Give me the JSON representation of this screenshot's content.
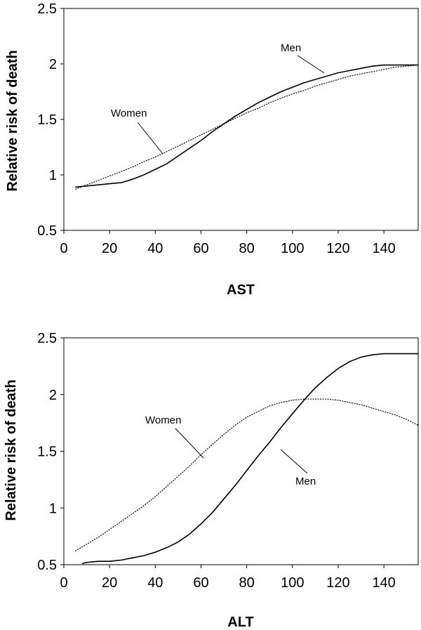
{
  "chart_data": [
    {
      "type": "line",
      "title": "",
      "xlabel": "AST",
      "ylabel": "Relative risk of death",
      "xlim": [
        0,
        155
      ],
      "ylim": [
        0.5,
        2.5
      ],
      "xticks": [
        0,
        20,
        40,
        60,
        80,
        100,
        120,
        140
      ],
      "yticks": [
        0.5,
        1,
        1.5,
        2,
        2.5
      ],
      "x_tick_labels": [
        "0",
        "20",
        "40",
        "60",
        "80",
        "100",
        "120",
        "140"
      ],
      "y_tick_labels": [
        "0.5",
        "1",
        "1.5",
        "2",
        "2.5"
      ],
      "grid": false,
      "series": [
        {
          "name": "Men",
          "style": "solid",
          "x": [
            5,
            10,
            15,
            20,
            25,
            30,
            35,
            40,
            45,
            50,
            55,
            60,
            65,
            70,
            75,
            80,
            85,
            90,
            95,
            100,
            105,
            110,
            115,
            120,
            125,
            130,
            135,
            140,
            145,
            150,
            155
          ],
          "y": [
            0.89,
            0.9,
            0.91,
            0.92,
            0.93,
            0.96,
            1.0,
            1.05,
            1.1,
            1.17,
            1.24,
            1.31,
            1.39,
            1.46,
            1.53,
            1.59,
            1.65,
            1.7,
            1.75,
            1.79,
            1.83,
            1.86,
            1.89,
            1.92,
            1.94,
            1.96,
            1.98,
            1.99,
            1.99,
            1.99,
            1.99
          ]
        },
        {
          "name": "Women",
          "style": "dotted",
          "x": [
            5,
            10,
            15,
            20,
            25,
            30,
            35,
            40,
            45,
            50,
            55,
            60,
            65,
            70,
            75,
            80,
            85,
            90,
            95,
            100,
            105,
            110,
            115,
            120,
            125,
            130,
            135,
            140,
            145,
            150,
            155
          ],
          "y": [
            0.87,
            0.91,
            0.95,
            0.99,
            1.03,
            1.07,
            1.12,
            1.16,
            1.21,
            1.26,
            1.31,
            1.36,
            1.41,
            1.46,
            1.51,
            1.56,
            1.6,
            1.65,
            1.69,
            1.73,
            1.76,
            1.8,
            1.83,
            1.86,
            1.89,
            1.91,
            1.93,
            1.95,
            1.97,
            1.98,
            1.99
          ]
        }
      ],
      "annotations": [
        "Men",
        "Women"
      ]
    },
    {
      "type": "line",
      "title": "",
      "xlabel": "ALT",
      "ylabel": "Relative risk of death",
      "xlim": [
        0,
        155
      ],
      "ylim": [
        0.5,
        2.5
      ],
      "xticks": [
        0,
        20,
        40,
        60,
        80,
        100,
        120,
        140
      ],
      "yticks": [
        0.5,
        1,
        1.5,
        2,
        2.5
      ],
      "x_tick_labels": [
        "0",
        "20",
        "40",
        "60",
        "80",
        "100",
        "120",
        "140"
      ],
      "y_tick_labels": [
        "0.5",
        "1",
        "1.5",
        "2",
        "2.5"
      ],
      "grid": false,
      "series": [
        {
          "name": "Women",
          "style": "dotted",
          "x": [
            5,
            10,
            15,
            20,
            25,
            30,
            35,
            40,
            45,
            50,
            55,
            60,
            65,
            70,
            75,
            80,
            85,
            90,
            95,
            100,
            105,
            110,
            115,
            120,
            125,
            130,
            135,
            140,
            145,
            150,
            155
          ],
          "y": [
            0.62,
            0.68,
            0.74,
            0.81,
            0.88,
            0.95,
            1.02,
            1.1,
            1.19,
            1.28,
            1.37,
            1.47,
            1.56,
            1.65,
            1.73,
            1.8,
            1.85,
            1.9,
            1.93,
            1.95,
            1.96,
            1.96,
            1.96,
            1.95,
            1.93,
            1.91,
            1.88,
            1.85,
            1.82,
            1.78,
            1.73
          ]
        },
        {
          "name": "Men",
          "style": "solid",
          "x": [
            8,
            10,
            15,
            20,
            25,
            30,
            35,
            40,
            45,
            50,
            55,
            60,
            65,
            70,
            75,
            80,
            85,
            90,
            95,
            100,
            105,
            110,
            115,
            120,
            125,
            130,
            135,
            140,
            145,
            150,
            155
          ],
          "y": [
            0.51,
            0.52,
            0.53,
            0.53,
            0.54,
            0.56,
            0.58,
            0.61,
            0.65,
            0.7,
            0.77,
            0.86,
            0.96,
            1.08,
            1.2,
            1.33,
            1.46,
            1.58,
            1.71,
            1.83,
            1.95,
            2.06,
            2.15,
            2.23,
            2.29,
            2.33,
            2.35,
            2.36,
            2.36,
            2.36,
            2.36
          ]
        }
      ],
      "annotations": [
        "Women",
        "Men"
      ]
    }
  ]
}
